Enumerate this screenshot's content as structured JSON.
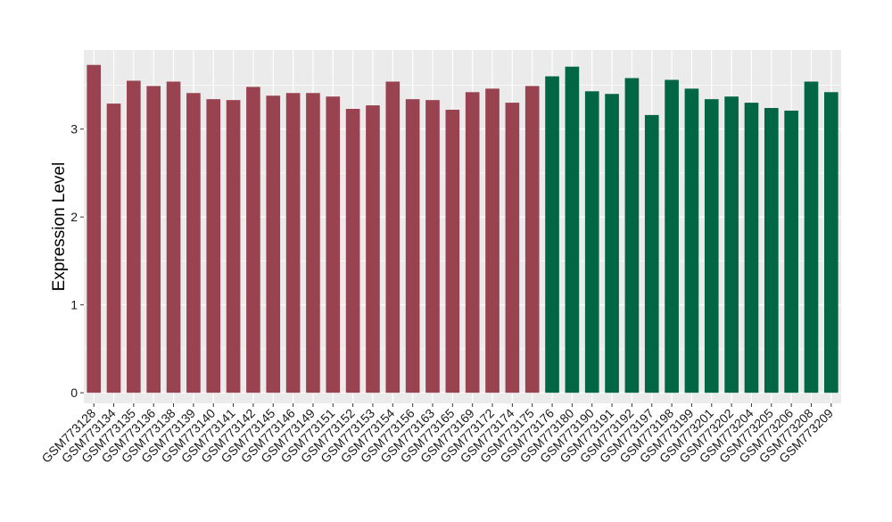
{
  "chart_data": {
    "type": "bar",
    "title": "",
    "xlabel": "",
    "ylabel": "Expression Level",
    "ylim": [
      -0.12,
      3.9
    ],
    "yticks": [
      0,
      1,
      2,
      3
    ],
    "grid": true,
    "legend": "none",
    "colors": {
      "group1": "#9a4350",
      "group2": "#006644",
      "panel_bg": "#ebebeb",
      "grid": "#ffffff"
    },
    "categories": [
      "GSM773128",
      "GSM773134",
      "GSM773135",
      "GSM773136",
      "GSM773138",
      "GSM773139",
      "GSM773140",
      "GSM773141",
      "GSM773142",
      "GSM773145",
      "GSM773146",
      "GSM773149",
      "GSM773151",
      "GSM773152",
      "GSM773153",
      "GSM773154",
      "GSM773156",
      "GSM773163",
      "GSM773165",
      "GSM773169",
      "GSM773172",
      "GSM773174",
      "GSM773175",
      "GSM773176",
      "GSM773180",
      "GSM773190",
      "GSM773191",
      "GSM773192",
      "GSM773197",
      "GSM773198",
      "GSM773199",
      "GSM773201",
      "GSM773202",
      "GSM773204",
      "GSM773205",
      "GSM773206",
      "GSM773208",
      "GSM773209"
    ],
    "values": [
      3.73,
      3.29,
      3.55,
      3.49,
      3.54,
      3.41,
      3.34,
      3.33,
      3.48,
      3.38,
      3.41,
      3.41,
      3.37,
      3.23,
      3.27,
      3.54,
      3.34,
      3.33,
      3.22,
      3.42,
      3.46,
      3.3,
      3.49,
      3.6,
      3.71,
      3.43,
      3.4,
      3.58,
      3.16,
      3.56,
      3.46,
      3.34,
      3.37,
      3.3,
      3.24,
      3.21,
      3.54,
      3.42
    ],
    "groups": [
      1,
      1,
      1,
      1,
      1,
      1,
      1,
      1,
      1,
      1,
      1,
      1,
      1,
      1,
      1,
      1,
      1,
      1,
      1,
      1,
      1,
      1,
      1,
      2,
      2,
      2,
      2,
      2,
      2,
      2,
      2,
      2,
      2,
      2,
      2,
      2,
      2,
      2
    ]
  }
}
